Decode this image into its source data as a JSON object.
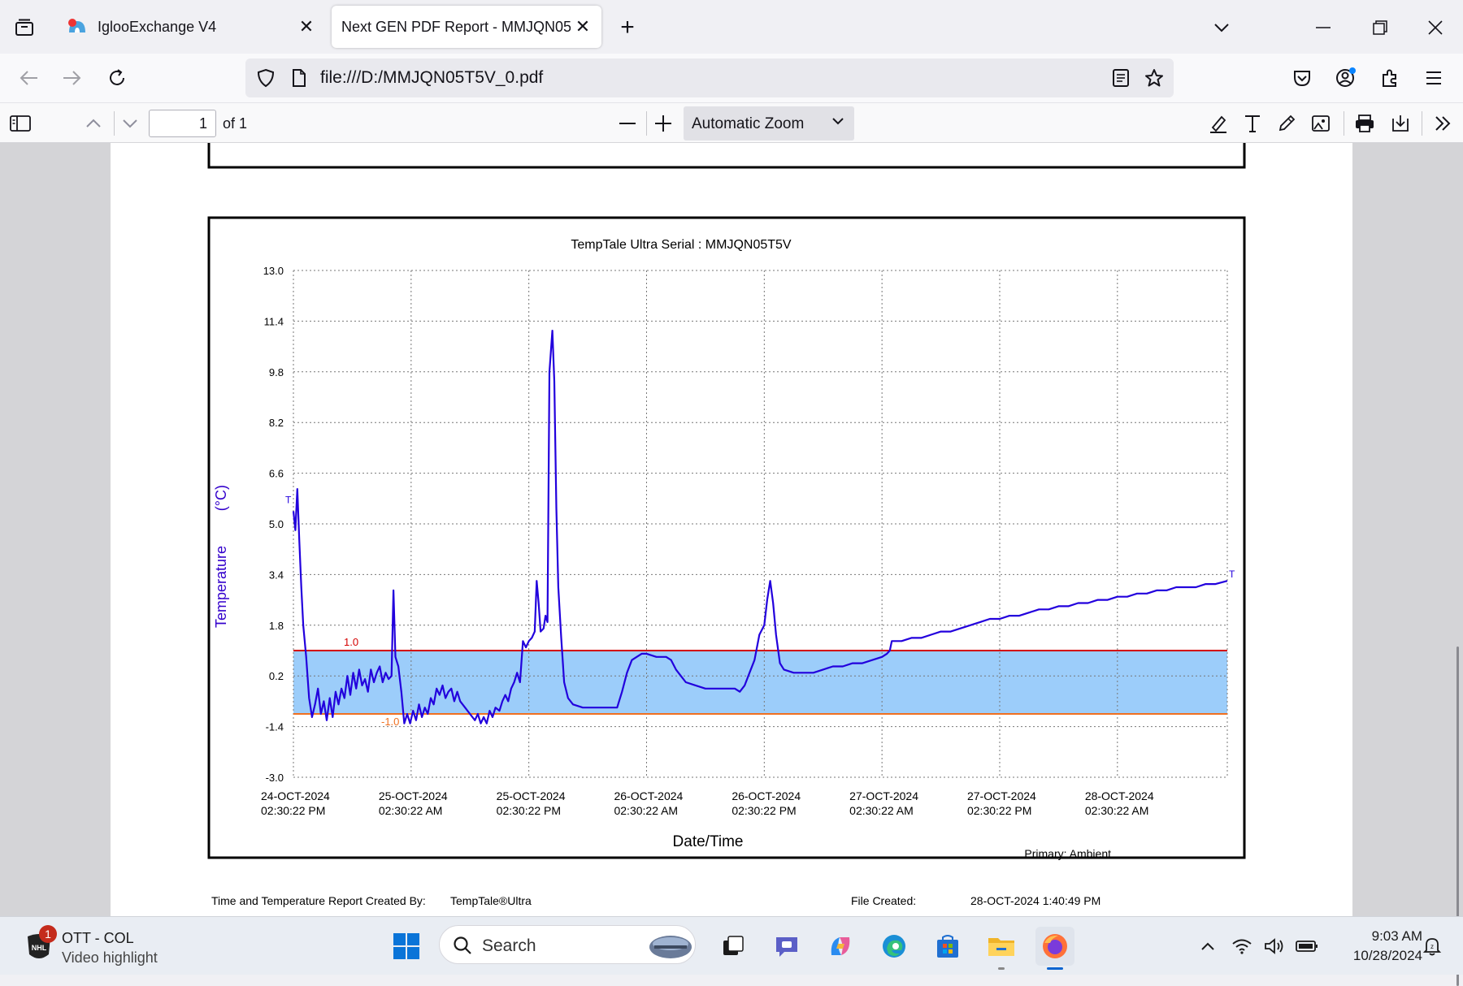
{
  "tabs": [
    {
      "title": "IglooExchange V4",
      "active": false
    },
    {
      "title": "Next GEN PDF Report - MMJQN05T5V_0.pdf",
      "active": true
    }
  ],
  "navbar": {
    "url": "file:///D:/MMJQN05T5V_0.pdf"
  },
  "pdf_toolbar": {
    "page_number": "1",
    "page_count": "of 1",
    "zoom_label": "Automatic Zoom"
  },
  "report": {
    "created_by_label": "Time and Temperature Report Created By:",
    "created_by_value": "TempTale®Ultra",
    "file_created_label": "File Created:",
    "file_created_value": "28-OCT-2024  1:40:49 PM"
  },
  "chart_data": {
    "type": "line",
    "title": "TempTale Ultra  Serial : MMJQN05T5V",
    "xlabel": "Date/Time",
    "ylabel": "Temperature",
    "ylabel_unit": "(°C)",
    "footer_note": "Primary: Ambient",
    "ylim": [
      -3.0,
      13.0
    ],
    "yticks": [
      "13.0",
      "11.4",
      "9.8",
      "8.2",
      "6.6",
      "5.0",
      "3.4",
      "1.8",
      "0.2",
      "-1.4",
      "-3.0"
    ],
    "x_tick_labels": [
      [
        "24-OCT-2024",
        "02:30:22 PM"
      ],
      [
        "25-OCT-2024",
        "02:30:22 AM"
      ],
      [
        "25-OCT-2024",
        "02:30:22 PM"
      ],
      [
        "26-OCT-2024",
        "02:30:22 AM"
      ],
      [
        "26-OCT-2024",
        "02:30:22 PM"
      ],
      [
        "27-OCT-2024",
        "02:30:22 AM"
      ],
      [
        "27-OCT-2024",
        "02:30:22 PM"
      ],
      [
        "28-OCT-2024",
        "02:30:22 AM"
      ]
    ],
    "x_range_hours": [
      0,
      95.2
    ],
    "upper_limit": {
      "value": 1.0,
      "label": "1.0",
      "color": "#d40000"
    },
    "lower_limit": {
      "value": -1.0,
      "label": "-1.0",
      "color": "#f07020"
    },
    "band_color": "#9ccdfa",
    "line_color": "#2200dd",
    "marker_start": "T",
    "marker_end": "T",
    "grid": true,
    "series": [
      {
        "values": [
          [
            0.0,
            5.4
          ],
          [
            0.2,
            4.8
          ],
          [
            0.4,
            6.1
          ],
          [
            0.6,
            4.5
          ],
          [
            0.8,
            3.0
          ],
          [
            1.0,
            1.8
          ],
          [
            1.3,
            0.8
          ],
          [
            1.6,
            -0.5
          ],
          [
            1.9,
            -1.1
          ],
          [
            2.2,
            -0.7
          ],
          [
            2.5,
            -0.2
          ],
          [
            2.8,
            -1.0
          ],
          [
            3.1,
            -0.6
          ],
          [
            3.4,
            -1.2
          ],
          [
            3.7,
            -0.5
          ],
          [
            4.0,
            -1.1
          ],
          [
            4.3,
            -0.3
          ],
          [
            4.6,
            -0.7
          ],
          [
            4.9,
            -0.2
          ],
          [
            5.2,
            -0.5
          ],
          [
            5.5,
            0.2
          ],
          [
            5.8,
            -0.4
          ],
          [
            6.1,
            0.3
          ],
          [
            6.4,
            -0.2
          ],
          [
            6.7,
            0.4
          ],
          [
            7.0,
            -0.1
          ],
          [
            7.3,
            0.1
          ],
          [
            7.6,
            -0.3
          ],
          [
            7.9,
            0.4
          ],
          [
            8.2,
            0.0
          ],
          [
            8.5,
            0.3
          ],
          [
            8.8,
            0.5
          ],
          [
            9.1,
            0.0
          ],
          [
            9.4,
            0.3
          ],
          [
            9.7,
            0.1
          ],
          [
            10.0,
            0.2
          ],
          [
            10.2,
            2.9
          ],
          [
            10.4,
            0.8
          ],
          [
            10.7,
            0.5
          ],
          [
            11.0,
            -0.3
          ],
          [
            11.3,
            -1.3
          ],
          [
            11.6,
            -1.0
          ],
          [
            11.9,
            -1.3
          ],
          [
            12.2,
            -0.9
          ],
          [
            12.5,
            -1.2
          ],
          [
            12.8,
            -0.7
          ],
          [
            13.1,
            -1.1
          ],
          [
            13.4,
            -0.8
          ],
          [
            13.7,
            -1.0
          ],
          [
            14.0,
            -0.5
          ],
          [
            14.3,
            -0.7
          ],
          [
            14.6,
            -0.2
          ],
          [
            14.9,
            -0.4
          ],
          [
            15.2,
            -0.1
          ],
          [
            15.5,
            -0.5
          ],
          [
            15.8,
            -0.3
          ],
          [
            16.1,
            -0.2
          ],
          [
            16.4,
            -0.6
          ],
          [
            16.7,
            -0.3
          ],
          [
            17.0,
            -0.6
          ],
          [
            17.5,
            -0.8
          ],
          [
            18.0,
            -1.0
          ],
          [
            18.5,
            -1.2
          ],
          [
            18.8,
            -1.0
          ],
          [
            19.1,
            -1.3
          ],
          [
            19.4,
            -1.1
          ],
          [
            19.7,
            -1.3
          ],
          [
            20.0,
            -0.9
          ],
          [
            20.3,
            -1.1
          ],
          [
            20.6,
            -0.8
          ],
          [
            21.0,
            -0.9
          ],
          [
            21.3,
            -0.6
          ],
          [
            21.6,
            -0.4
          ],
          [
            21.9,
            -0.6
          ],
          [
            22.2,
            -0.2
          ],
          [
            22.5,
            0.0
          ],
          [
            22.8,
            0.3
          ],
          [
            23.1,
            0.0
          ],
          [
            23.4,
            1.3
          ],
          [
            23.7,
            1.1
          ],
          [
            24.0,
            1.3
          ],
          [
            24.3,
            1.4
          ],
          [
            24.6,
            1.6
          ],
          [
            24.8,
            3.2
          ],
          [
            25.0,
            2.5
          ],
          [
            25.2,
            1.6
          ],
          [
            25.5,
            1.7
          ],
          [
            25.7,
            2.1
          ],
          [
            25.9,
            1.9
          ],
          [
            26.1,
            9.8
          ],
          [
            26.4,
            11.1
          ],
          [
            26.6,
            9.5
          ],
          [
            26.8,
            5.5
          ],
          [
            27.0,
            3.0
          ],
          [
            27.3,
            1.4
          ],
          [
            27.6,
            0.0
          ],
          [
            28.0,
            -0.5
          ],
          [
            28.5,
            -0.7
          ],
          [
            29.5,
            -0.8
          ],
          [
            31.0,
            -0.8
          ],
          [
            33.0,
            -0.8
          ],
          [
            33.5,
            -0.3
          ],
          [
            34.0,
            0.3
          ],
          [
            34.5,
            0.7
          ],
          [
            35.0,
            0.8
          ],
          [
            35.5,
            0.9
          ],
          [
            36.0,
            0.9
          ],
          [
            37.0,
            0.8
          ],
          [
            38.0,
            0.8
          ],
          [
            38.5,
            0.7
          ],
          [
            39.0,
            0.4
          ],
          [
            39.5,
            0.2
          ],
          [
            40.0,
            0.0
          ],
          [
            41.0,
            -0.1
          ],
          [
            42.0,
            -0.2
          ],
          [
            43.0,
            -0.2
          ],
          [
            44.0,
            -0.2
          ],
          [
            45.0,
            -0.2
          ],
          [
            45.5,
            -0.3
          ],
          [
            46.0,
            -0.1
          ],
          [
            46.5,
            0.3
          ],
          [
            47.0,
            0.7
          ],
          [
            47.5,
            1.5
          ],
          [
            48.0,
            1.8
          ],
          [
            48.3,
            2.6
          ],
          [
            48.6,
            3.2
          ],
          [
            48.9,
            2.5
          ],
          [
            49.2,
            1.5
          ],
          [
            49.6,
            0.6
          ],
          [
            50.0,
            0.4
          ],
          [
            51.0,
            0.3
          ],
          [
            52.0,
            0.3
          ],
          [
            53.0,
            0.3
          ],
          [
            54.0,
            0.4
          ],
          [
            55.0,
            0.5
          ],
          [
            56.0,
            0.5
          ],
          [
            57.0,
            0.6
          ],
          [
            58.0,
            0.6
          ],
          [
            59.0,
            0.7
          ],
          [
            60.0,
            0.8
          ],
          [
            60.5,
            0.9
          ],
          [
            60.8,
            1.0
          ],
          [
            61.0,
            1.3
          ],
          [
            62.0,
            1.3
          ],
          [
            63.0,
            1.4
          ],
          [
            64.0,
            1.4
          ],
          [
            65.0,
            1.5
          ],
          [
            66.0,
            1.6
          ],
          [
            67.0,
            1.6
          ],
          [
            68.0,
            1.7
          ],
          [
            69.0,
            1.8
          ],
          [
            70.0,
            1.9
          ],
          [
            71.0,
            2.0
          ],
          [
            72.0,
            2.0
          ],
          [
            73.0,
            2.1
          ],
          [
            74.0,
            2.1
          ],
          [
            75.0,
            2.2
          ],
          [
            76.0,
            2.3
          ],
          [
            77.0,
            2.3
          ],
          [
            78.0,
            2.4
          ],
          [
            79.0,
            2.4
          ],
          [
            80.0,
            2.5
          ],
          [
            81.0,
            2.5
          ],
          [
            82.0,
            2.6
          ],
          [
            83.0,
            2.6
          ],
          [
            84.0,
            2.7
          ],
          [
            85.0,
            2.7
          ],
          [
            86.0,
            2.8
          ],
          [
            87.0,
            2.8
          ],
          [
            88.0,
            2.9
          ],
          [
            89.0,
            2.9
          ],
          [
            90.0,
            3.0
          ],
          [
            91.0,
            3.0
          ],
          [
            92.0,
            3.0
          ],
          [
            93.0,
            3.1
          ],
          [
            94.0,
            3.1
          ],
          [
            95.2,
            3.2
          ]
        ]
      }
    ]
  },
  "taskbar": {
    "news_title": "OTT - COL",
    "news_subtitle": "Video highlight",
    "news_badge": "1",
    "search_text": "Search",
    "time": "9:03 AM",
    "date": "10/28/2024"
  }
}
